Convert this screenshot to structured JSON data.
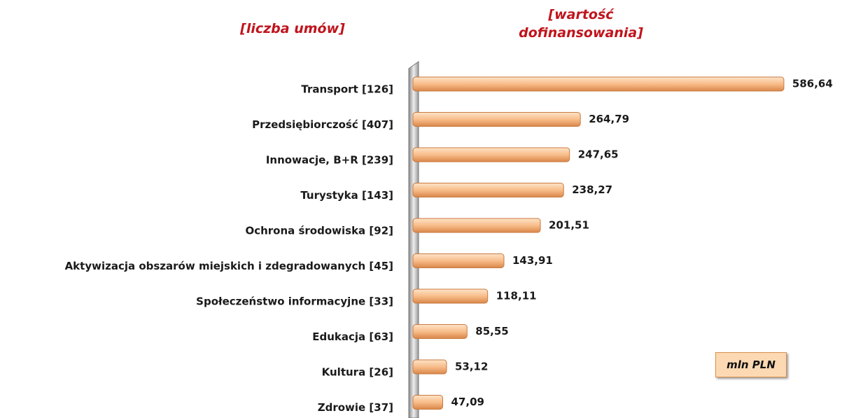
{
  "chart_data": {
    "type": "hbar",
    "left_title": "[liczba umów]",
    "right_title": "[wartość dofinansowania]",
    "annotation": "mln PLN",
    "categories": [
      "Transport [126]",
      "Przedsiębiorczość [407]",
      "Innowacje, B+R [239]",
      "Turystyka [143]",
      "Ochrona środowiska [92]",
      "Aktywizacja obszarów miejskich i zdegradowanych [45]",
      "Społeczeństwo informacyjne [33]",
      "Edukacja [63]",
      "Kultura [26]",
      "Zdrowie [37]"
    ],
    "values": [
      586.64,
      264.79,
      247.65,
      238.27,
      201.51,
      143.91,
      118.11,
      85.55,
      53.12,
      47.09
    ],
    "value_labels": [
      "586,64",
      "264,79",
      "247,65",
      "238,27",
      "201,51",
      "143,91",
      "118,11",
      "85,55",
      "53,12",
      "47,09"
    ],
    "color": "#f8bd8a",
    "xlim": [
      0,
      600
    ]
  }
}
